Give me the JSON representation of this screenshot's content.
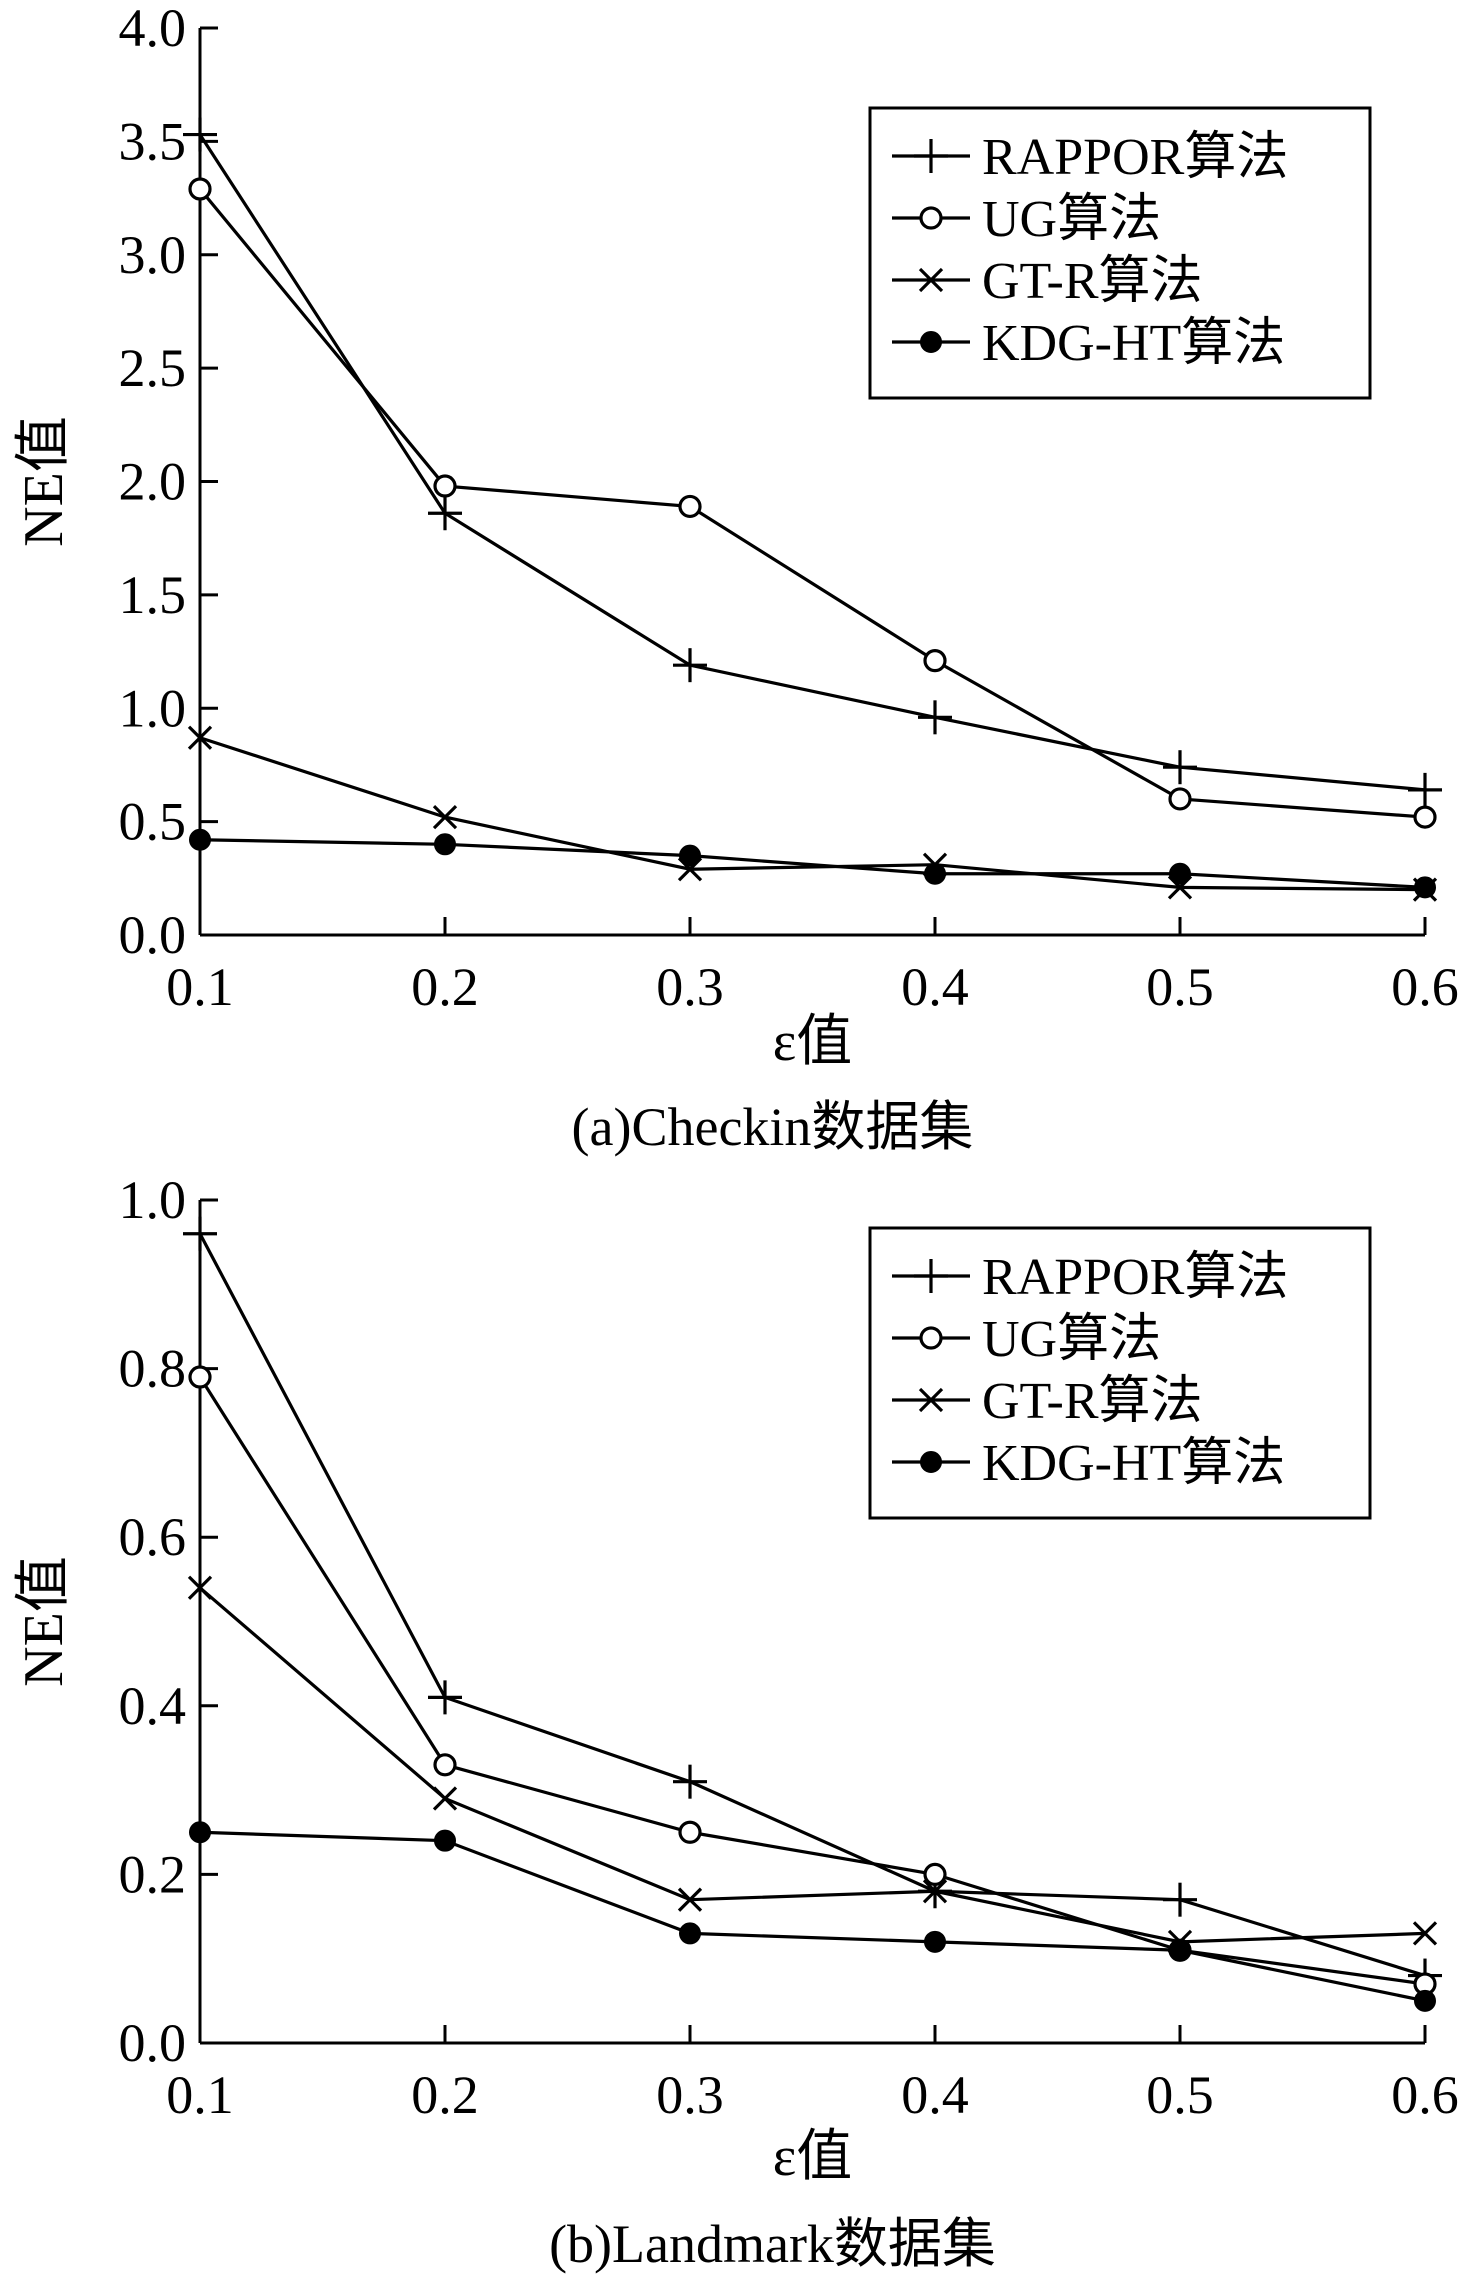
{
  "chart_data": [
    {
      "type": "line",
      "caption": "(a)Checkin数据集",
      "xlabel": "ε值",
      "ylabel": "NE值",
      "x": [
        0.1,
        0.2,
        0.3,
        0.4,
        0.5,
        0.6
      ],
      "x_tick_labels": [
        "0.1",
        "0.2",
        "0.3",
        "0.4",
        "0.5",
        "0.6"
      ],
      "xlim": [
        0.1,
        0.6
      ],
      "ylim": [
        0.0,
        4.0
      ],
      "y_ticks": [
        0.0,
        0.5,
        1.0,
        1.5,
        2.0,
        2.5,
        3.0,
        3.5,
        4.0
      ],
      "y_tick_labels": [
        "0.0",
        "0.5",
        "1.0",
        "1.5",
        "2.0",
        "2.5",
        "3.0",
        "3.5",
        "4.0"
      ],
      "grid": false,
      "legend": "top-right",
      "series": [
        {
          "name": "RAPPOR算法",
          "marker": "plus",
          "values": [
            3.53,
            1.86,
            1.19,
            0.96,
            0.74,
            0.64
          ]
        },
        {
          "name": "UG算法",
          "marker": "open-circle",
          "values": [
            3.29,
            1.98,
            1.89,
            1.21,
            0.6,
            0.52
          ]
        },
        {
          "name": "GT-R算法",
          "marker": "cross",
          "values": [
            0.87,
            0.52,
            0.29,
            0.31,
            0.21,
            0.2
          ]
        },
        {
          "name": "KDG-HT算法",
          "marker": "filled-circle",
          "values": [
            0.42,
            0.4,
            0.35,
            0.27,
            0.27,
            0.21
          ]
        }
      ]
    },
    {
      "type": "line",
      "caption": "(b)Landmark数据集",
      "xlabel": "ε值",
      "ylabel": "NE值",
      "x": [
        0.1,
        0.2,
        0.3,
        0.4,
        0.5,
        0.6
      ],
      "x_tick_labels": [
        "0.1",
        "0.2",
        "0.3",
        "0.4",
        "0.5",
        "0.6"
      ],
      "xlim": [
        0.1,
        0.6
      ],
      "ylim": [
        0.0,
        1.0
      ],
      "y_ticks": [
        0.0,
        0.2,
        0.4,
        0.6,
        0.8,
        1.0
      ],
      "y_tick_labels": [
        "0.0",
        "0.2",
        "0.4",
        "0.6",
        "0.8",
        "1.0"
      ],
      "grid": false,
      "legend": "top-right",
      "series": [
        {
          "name": "RAPPOR算法",
          "marker": "plus",
          "values": [
            0.96,
            0.41,
            0.31,
            0.18,
            0.17,
            0.08
          ]
        },
        {
          "name": "UG算法",
          "marker": "open-circle",
          "values": [
            0.79,
            0.33,
            0.25,
            0.2,
            0.11,
            0.07
          ]
        },
        {
          "name": "GT-R算法",
          "marker": "cross",
          "values": [
            0.54,
            0.29,
            0.17,
            0.18,
            0.12,
            0.13
          ]
        },
        {
          "name": "KDG-HT算法",
          "marker": "filled-circle",
          "values": [
            0.25,
            0.24,
            0.13,
            0.12,
            0.11,
            0.05
          ]
        }
      ]
    }
  ]
}
